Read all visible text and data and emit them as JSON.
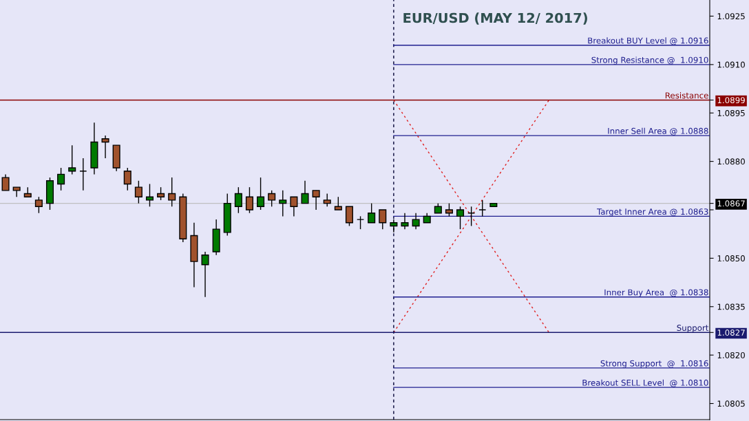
{
  "chart_data": {
    "type": "candlestick",
    "title": "EUR/USD (MAY 12/ 2017)",
    "categories": [
      null,
      null,
      null,
      null,
      null,
      null,
      null,
      null,
      null,
      null,
      null,
      null,
      null,
      null,
      null,
      null,
      null,
      null,
      null,
      null,
      null,
      null,
      null,
      null,
      null,
      null,
      null,
      null,
      null,
      null,
      null,
      null,
      null,
      null,
      null,
      null,
      null,
      null,
      null,
      null,
      null,
      null,
      null,
      null,
      null,
      null,
      null,
      null,
      null,
      null,
      null,
      null,
      null,
      null,
      null,
      null,
      null,
      null,
      null,
      null,
      null,
      null,
      null,
      null
    ],
    "ohlc": [
      [
        1.0875,
        1.0876,
        1.0871,
        1.0871
      ],
      [
        1.0872,
        1.0872,
        1.0869,
        1.0871
      ],
      [
        1.087,
        1.0872,
        1.0869,
        1.0869
      ],
      [
        1.0868,
        1.0869,
        1.0864,
        1.0866
      ],
      [
        1.0867,
        1.0875,
        1.0865,
        1.0874
      ],
      [
        1.0873,
        1.0878,
        1.0871,
        1.0876
      ],
      [
        1.0877,
        1.0885,
        1.0876,
        1.0878
      ],
      [
        1.0877,
        1.0881,
        1.0871,
        1.0877
      ],
      [
        1.0878,
        1.0892,
        1.0876,
        1.0886
      ],
      [
        1.0887,
        1.0888,
        1.0881,
        1.0886
      ],
      [
        1.0885,
        1.0885,
        1.0877,
        1.0878
      ],
      [
        1.0877,
        1.0878,
        1.0871,
        1.0873
      ],
      [
        1.0872,
        1.0874,
        1.0867,
        1.0869
      ],
      [
        1.0868,
        1.0873,
        1.0866,
        1.0869
      ],
      [
        1.087,
        1.0872,
        1.0868,
        1.0869
      ],
      [
        1.087,
        1.0875,
        1.0866,
        1.0868
      ],
      [
        1.0869,
        1.087,
        1.0855,
        1.0856
      ],
      [
        1.0857,
        1.0861,
        1.0841,
        1.0849
      ],
      [
        1.0848,
        1.0852,
        1.0838,
        1.0851
      ],
      [
        1.0852,
        1.0862,
        1.0851,
        1.0859
      ],
      [
        1.0858,
        1.087,
        1.0857,
        1.0867
      ],
      [
        1.0866,
        1.0872,
        1.0864,
        1.087
      ],
      [
        1.0869,
        1.0872,
        1.0864,
        1.0865
      ],
      [
        1.0866,
        1.0875,
        1.0865,
        1.0869
      ],
      [
        1.087,
        1.0871,
        1.0866,
        1.0868
      ],
      [
        1.0867,
        1.0871,
        1.0863,
        1.0868
      ],
      [
        1.0869,
        1.0869,
        1.0863,
        1.0866
      ],
      [
        1.0867,
        1.0874,
        1.0867,
        1.087
      ],
      [
        1.0871,
        1.0871,
        1.0865,
        1.0869
      ],
      [
        1.0868,
        1.087,
        1.0866,
        1.0867
      ],
      [
        1.0866,
        1.0869,
        1.0865,
        1.0865
      ],
      [
        1.0866,
        1.0866,
        1.086,
        1.0861
      ],
      [
        1.0862,
        1.0863,
        1.0859,
        1.0862
      ],
      [
        1.0861,
        1.0867,
        1.0861,
        1.0864
      ],
      [
        1.0865,
        1.0865,
        1.0859,
        1.0861
      ],
      [
        1.086,
        1.0862,
        1.0858,
        1.0861
      ],
      [
        1.086,
        1.0864,
        1.0859,
        1.0861
      ],
      [
        1.086,
        1.0864,
        1.0859,
        1.0862
      ],
      [
        1.0861,
        1.0864,
        1.0861,
        1.0863
      ],
      [
        1.0864,
        1.0867,
        1.0864,
        1.0866
      ],
      [
        1.0865,
        1.0867,
        1.0863,
        1.0864
      ],
      [
        1.0863,
        1.0866,
        1.0859,
        1.0865
      ],
      [
        1.0864,
        1.0866,
        1.086,
        1.0864
      ],
      [
        1.0865,
        1.0868,
        1.0863,
        1.0865
      ],
      [
        1.0866,
        1.0867,
        1.0866,
        1.0867
      ],
      null,
      null,
      null,
      null,
      null,
      null,
      null,
      null,
      null,
      null,
      null,
      null,
      null,
      null,
      null,
      null,
      null,
      null,
      null
    ],
    "colors": [
      "#a0522d",
      "#a0522d",
      "#a0522d",
      "#a0522d",
      "#007a00",
      "#007a00",
      "#007a00",
      "#000000",
      "#007a00",
      "#a0522d",
      "#a0522d",
      "#a0522d",
      "#a0522d",
      "#007a00",
      "#a0522d",
      "#a0522d",
      "#a0522d",
      "#a0522d",
      "#007a00",
      "#007a00",
      "#007a00",
      "#007a00",
      "#a0522d",
      "#007a00",
      "#a0522d",
      "#007a00",
      "#a0522d",
      "#007a00",
      "#a0522d",
      "#a0522d",
      "#a0522d",
      "#a0522d",
      "#000000",
      "#007a00",
      "#a0522d",
      "#007a00",
      "#007a00",
      "#007a00",
      "#007a00",
      "#007a00",
      "#a0522d",
      "#007a00",
      "#000000",
      "#000000",
      "#007a00",
      null,
      null,
      null,
      null,
      null,
      null,
      null,
      null,
      null,
      null,
      null,
      null,
      null,
      null,
      null,
      null,
      null,
      null,
      null
    ],
    "series": [
      {
        "type": "line",
        "values": [
          null,
          null,
          null,
          null,
          null,
          null,
          null,
          null,
          null,
          null,
          null,
          null,
          null,
          null,
          null,
          null,
          null,
          null,
          null,
          null,
          null,
          null,
          null,
          null,
          null,
          null,
          null,
          null,
          null,
          null,
          null,
          null,
          null,
          null,
          null,
          1.0899,
          null,
          null,
          null,
          null,
          null,
          null,
          null,
          null,
          null,
          null,
          null,
          null,
          null,
          1.0827,
          null,
          null,
          null,
          null,
          null,
          null,
          null,
          null,
          null,
          null,
          null,
          null,
          null,
          null
        ],
        "color": "#e02020",
        "line_style": "dotted"
      },
      {
        "type": "line",
        "values": [
          null,
          null,
          null,
          null,
          null,
          null,
          null,
          null,
          null,
          null,
          null,
          null,
          null,
          null,
          null,
          null,
          null,
          null,
          null,
          null,
          null,
          null,
          null,
          null,
          null,
          null,
          null,
          null,
          null,
          null,
          null,
          null,
          null,
          null,
          null,
          1.0827,
          null,
          null,
          null,
          null,
          null,
          null,
          null,
          null,
          null,
          null,
          null,
          null,
          null,
          1.0899,
          null,
          null,
          null,
          null,
          null,
          null,
          null,
          null,
          null,
          null,
          null,
          null,
          null,
          null
        ],
        "color": "#e02020",
        "line_style": "dotted"
      }
    ],
    "ylim": [
      1.08,
      1.093
    ],
    "yticks": [
      {
        "value": 1.0805,
        "label": "1.0805"
      },
      {
        "value": 1.082,
        "label": "1.0820"
      },
      {
        "value": 1.0827,
        "label": "1.0827"
      },
      {
        "value": 1.0835,
        "label": "1.0835"
      },
      {
        "value": 1.085,
        "label": "1.0850"
      },
      {
        "value": 1.0865,
        "label": null
      },
      {
        "value": 1.0867,
        "label": "1.0867"
      },
      {
        "value": 1.088,
        "label": "1.0880"
      },
      {
        "value": 1.0895,
        "label": "1.0895"
      },
      {
        "value": 1.0899,
        "label": "1.0899"
      },
      {
        "value": 1.091,
        "label": "1.0910"
      },
      {
        "value": 1.0925,
        "label": "1.0925"
      }
    ],
    "tick_labels": "y",
    "grid": false,
    "legend": false,
    "ref_lines": [
      {
        "axis": "y",
        "value": 1.0916,
        "label": "Breakout BUY Level @ 1.0916",
        "color": "#1f1f8f"
      },
      {
        "axis": "y",
        "value": 1.091,
        "label": "Strong Resistance @  1.0910",
        "color": "#1f1f8f"
      },
      {
        "axis": "y",
        "value": 1.0899,
        "label": "Resistance",
        "color": "#8b0000",
        "line_style": "solid"
      },
      {
        "axis": "y",
        "value": 1.0888,
        "label": "Inner Sell Area @ 1.0888",
        "color": "#1f1f8f"
      },
      {
        "axis": "y",
        "value": 1.0867,
        "color": "#c0c0c0",
        "line_style": "solid"
      },
      {
        "axis": "y",
        "value": 1.0863,
        "label": "Target Inner Area @ 1.0863",
        "color": "#1f1f8f"
      },
      {
        "axis": "y",
        "value": 1.0838,
        "label": "Inner Buy Area  @ 1.0838",
        "color": "#1f1f8f"
      },
      {
        "axis": "y",
        "value": 1.0827,
        "label": "Support",
        "color": "#1a1a6e",
        "line_style": "solid"
      },
      {
        "axis": "y",
        "value": 1.0816,
        "label": "Strong Support  @  1.0816",
        "color": "#1f1f8f"
      },
      {
        "axis": "y",
        "value": 1.081,
        "label": "Breakout SELL Level  @ 1.0810",
        "color": "#1f1f8f"
      }
    ]
  }
}
